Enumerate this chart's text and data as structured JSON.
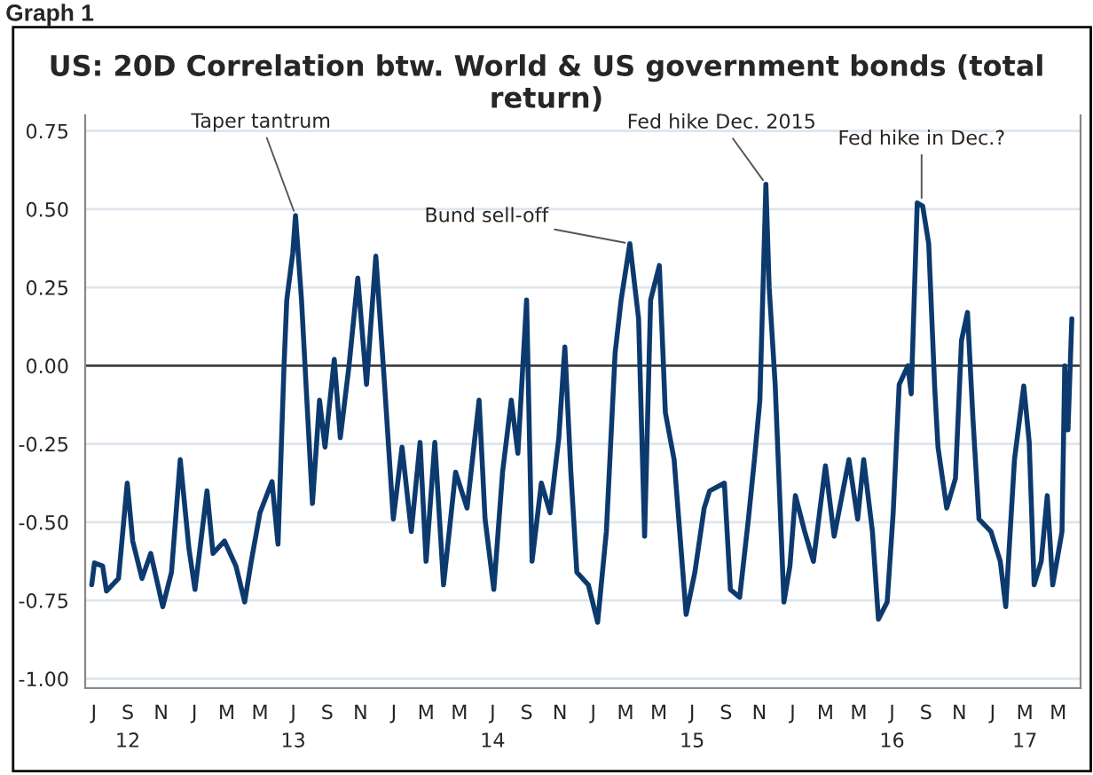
{
  "chart_data": {
    "type": "line",
    "title": "US: 20D Correlation btw. World & US government bonds (total return)",
    "annotations": [
      "Graph 1",
      {
        "text": "Taper tantrum",
        "x": "2013-07-05",
        "y": 0.48
      },
      {
        "text": "Bund sell-off",
        "x": "2015-03-09",
        "y": 0.39
      },
      {
        "text": "Fed hike Dec. 2015",
        "x": "2015-11-13",
        "y": 0.58
      },
      {
        "text": "Fed hike in Dec.?",
        "x": "2016-08-24",
        "y": 0.52
      }
    ],
    "x": [
      "2012-06-27",
      "2012-07-02",
      "2012-07-17",
      "2012-07-24",
      "2012-08-15",
      "2012-08-31",
      "2012-09-10",
      "2012-09-27",
      "2012-10-13",
      "2012-11-04",
      "2012-11-20",
      "2012-12-06",
      "2012-12-22",
      "2013-01-02",
      "2013-01-24",
      "2013-02-04",
      "2013-02-25",
      "2013-03-18",
      "2013-04-03",
      "2013-04-15",
      "2013-05-01",
      "2013-05-23",
      "2013-06-03",
      "2013-06-14",
      "2013-06-19",
      "2013-06-30",
      "2013-07-05",
      "2013-07-16",
      "2013-07-27",
      "2013-08-05",
      "2013-08-18",
      "2013-08-28",
      "2013-09-14",
      "2013-09-25",
      "2013-10-11",
      "2013-10-27",
      "2013-11-12",
      "2013-11-29",
      "2013-12-15",
      "2013-12-31",
      "2014-01-16",
      "2014-02-02",
      "2014-02-18",
      "2014-03-01",
      "2014-03-17",
      "2014-04-02",
      "2014-04-24",
      "2014-05-15",
      "2014-06-06",
      "2014-06-17",
      "2014-07-03",
      "2014-07-19",
      "2014-08-04",
      "2014-08-16",
      "2014-09-01",
      "2014-09-11",
      "2014-09-28",
      "2014-10-14",
      "2014-10-30",
      "2014-11-10",
      "2014-11-21",
      "2014-12-02",
      "2014-12-23",
      "2015-01-09",
      "2015-01-25",
      "2015-02-10",
      "2015-02-21",
      "2015-03-09",
      "2015-03-25",
      "2015-04-05",
      "2015-04-16",
      "2015-05-02",
      "2015-05-13",
      "2015-05-29",
      "2015-06-20",
      "2015-07-06",
      "2015-07-23",
      "2015-08-02",
      "2015-08-29",
      "2015-09-09",
      "2015-09-26",
      "2015-10-12",
      "2015-10-23",
      "2015-11-02",
      "2015-11-13",
      "2015-11-19",
      "2015-11-30",
      "2015-12-16",
      "2015-12-27",
      "2016-01-06",
      "2016-01-23",
      "2016-02-08",
      "2016-03-01",
      "2016-03-17",
      "2016-04-13",
      "2016-04-29",
      "2016-05-10",
      "2016-05-26",
      "2016-06-06",
      "2016-06-22",
      "2016-07-03",
      "2016-07-14",
      "2016-07-30",
      "2016-08-05",
      "2016-08-16",
      "2016-08-26",
      "2016-09-06",
      "2016-09-17",
      "2016-09-23",
      "2016-10-09",
      "2016-10-25",
      "2016-11-05",
      "2016-11-16",
      "2016-11-26",
      "2016-12-07",
      "2016-12-29",
      "2017-01-15",
      "2017-01-25",
      "2017-02-10",
      "2017-02-27",
      "2017-03-09",
      "2017-03-18",
      "2017-03-31",
      "2017-04-11",
      "2017-04-21",
      "2017-05-08",
      "2017-05-13",
      "2017-05-19",
      "2017-05-26"
    ],
    "series": [
      {
        "color": "#0d3a6e",
        "values": [
          -0.7,
          -0.63,
          -0.64,
          -0.72,
          -0.68,
          -0.375,
          -0.56,
          -0.68,
          -0.6,
          -0.77,
          -0.66,
          -0.3,
          -0.585,
          -0.715,
          -0.4,
          -0.6,
          -0.56,
          -0.64,
          -0.755,
          -0.625,
          -0.47,
          -0.37,
          -0.57,
          0.0,
          0.21,
          0.36,
          0.48,
          0.21,
          -0.15,
          -0.44,
          -0.11,
          -0.26,
          0.02,
          -0.23,
          0.0,
          0.28,
          -0.06,
          0.35,
          -0.06,
          -0.49,
          -0.26,
          -0.53,
          -0.245,
          -0.625,
          -0.245,
          -0.7,
          -0.34,
          -0.455,
          -0.11,
          -0.49,
          -0.715,
          -0.34,
          -0.11,
          -0.28,
          0.21,
          -0.625,
          -0.375,
          -0.47,
          -0.23,
          0.06,
          -0.34,
          -0.66,
          -0.7,
          -0.82,
          -0.53,
          0.04,
          0.21,
          0.39,
          0.15,
          -0.545,
          0.21,
          0.32,
          -0.15,
          -0.3,
          -0.795,
          -0.66,
          -0.455,
          -0.4,
          -0.375,
          -0.715,
          -0.74,
          -0.49,
          -0.3,
          -0.11,
          0.58,
          0.25,
          -0.06,
          -0.755,
          -0.64,
          -0.415,
          -0.53,
          -0.625,
          -0.32,
          -0.545,
          -0.3,
          -0.49,
          -0.3,
          -0.53,
          -0.81,
          -0.755,
          -0.47,
          -0.06,
          0.0,
          -0.09,
          0.52,
          0.51,
          0.39,
          -0.07,
          -0.26,
          -0.455,
          -0.36,
          0.08,
          0.17,
          -0.17,
          -0.49,
          -0.53,
          -0.625,
          -0.77,
          -0.3,
          -0.065,
          -0.245,
          -0.7,
          -0.625,
          -0.415,
          -0.7,
          -0.53,
          0.0,
          -0.205,
          0.15
        ]
      }
    ],
    "xlim": [
      "2012-06-15",
      "2017-06-11"
    ],
    "xticks": [
      {
        "value": "2012-07-01",
        "label": "J"
      },
      {
        "value": "2012-09-01",
        "label": "S\n12"
      },
      {
        "value": "2012-11-01",
        "label": "N"
      },
      {
        "value": "2013-01-01",
        "label": "J"
      },
      {
        "value": "2013-03-01",
        "label": "M"
      },
      {
        "value": "2013-05-01",
        "label": "M"
      },
      {
        "value": "2013-07-01",
        "label": "J\n13"
      },
      {
        "value": "2013-09-01",
        "label": "S"
      },
      {
        "value": "2013-11-01",
        "label": "N"
      },
      {
        "value": "2014-01-01",
        "label": "J"
      },
      {
        "value": "2014-03-01",
        "label": "M"
      },
      {
        "value": "2014-05-01",
        "label": "M"
      },
      {
        "value": "2014-07-01",
        "label": "J\n14"
      },
      {
        "value": "2014-09-01",
        "label": "S"
      },
      {
        "value": "2014-11-01",
        "label": "N"
      },
      {
        "value": "2015-01-01",
        "label": "J"
      },
      {
        "value": "2015-03-01",
        "label": "M"
      },
      {
        "value": "2015-05-01",
        "label": "M"
      },
      {
        "value": "2015-07-01",
        "label": "J\n15"
      },
      {
        "value": "2015-09-01",
        "label": "S"
      },
      {
        "value": "2015-11-01",
        "label": "N"
      },
      {
        "value": "2016-01-01",
        "label": "J"
      },
      {
        "value": "2016-03-01",
        "label": "M"
      },
      {
        "value": "2016-05-01",
        "label": "M"
      },
      {
        "value": "2016-07-01",
        "label": "J\n16"
      },
      {
        "value": "2016-09-01",
        "label": "S"
      },
      {
        "value": "2016-11-01",
        "label": "N"
      },
      {
        "value": "2017-01-01",
        "label": "J"
      },
      {
        "value": "2017-03-01",
        "label": "M\n17"
      },
      {
        "value": "2017-05-01",
        "label": "M"
      }
    ],
    "ylim": [
      -1.03,
      0.8
    ],
    "yticks": [
      {
        "value": 0.75,
        "label": "0.75"
      },
      {
        "value": 0.5,
        "label": "0.50"
      },
      {
        "value": 0.25,
        "label": "0.25"
      },
      {
        "value": 0,
        "label": "0.00"
      },
      {
        "value": -0.25,
        "label": "-0.25"
      },
      {
        "value": -0.5,
        "label": "-0.50"
      },
      {
        "value": -0.75,
        "label": "-0.75"
      },
      {
        "value": -1,
        "label": "-1.00"
      }
    ],
    "grid": "y",
    "ref_lines": [
      {
        "axis": "y",
        "value": 0,
        "color": "#404040"
      }
    ]
  }
}
